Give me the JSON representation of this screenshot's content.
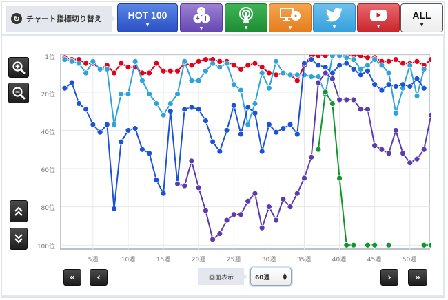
{
  "topbar": {
    "switch_label": "チャート指標切り替え",
    "tabs": [
      {
        "id": "hot100",
        "label": "HOT 100",
        "color": "#2f55cc"
      },
      {
        "id": "sales",
        "label": "",
        "icon": "sales-download-icon",
        "color": "#6e52b8"
      },
      {
        "id": "radio",
        "label": "",
        "icon": "radio-airplay-icon",
        "color": "#239a3b"
      },
      {
        "id": "pc",
        "label": "",
        "icon": "pc-lookup-icon",
        "color": "#ec8a2c"
      },
      {
        "id": "twitter",
        "label": "",
        "icon": "twitter-icon",
        "color": "#3fa7e0"
      },
      {
        "id": "youtube",
        "label": "",
        "icon": "youtube-icon",
        "color": "#d0323a"
      },
      {
        "id": "all",
        "label": "ALL",
        "color": "#ffffff"
      }
    ]
  },
  "controls": {
    "zoom_in": "zoom-in",
    "zoom_out": "zoom-out",
    "scroll_up": "scroll-up",
    "scroll_down": "scroll-down"
  },
  "footer": {
    "first": "«",
    "prev": "‹",
    "display_label": "画面表示",
    "display_value": "60週",
    "next": "›",
    "last": "»"
  },
  "chart_data": {
    "type": "line",
    "title": "",
    "xlabel": "",
    "ylabel": "",
    "y_inverted": true,
    "ylim": [
      1,
      100
    ],
    "y_ticks": [
      {
        "value": 1,
        "label": "1位"
      },
      {
        "value": 20,
        "label": "20位"
      },
      {
        "value": 40,
        "label": "40位"
      },
      {
        "value": 60,
        "label": "60位"
      },
      {
        "value": 80,
        "label": "80位"
      },
      {
        "value": 100,
        "label": "100位"
      }
    ],
    "x_ticks": [
      {
        "value": 5,
        "label": "5週"
      },
      {
        "value": 10,
        "label": "10週"
      },
      {
        "value": 15,
        "label": "15週"
      },
      {
        "value": 20,
        "label": "20週"
      },
      {
        "value": 25,
        "label": "25週"
      },
      {
        "value": 30,
        "label": "30週"
      },
      {
        "value": 35,
        "label": "35週"
      },
      {
        "value": 40,
        "label": "40週"
      },
      {
        "value": 45,
        "label": "45週"
      },
      {
        "value": 50,
        "label": "50週"
      }
    ],
    "grid": true,
    "legend": "none",
    "series": [
      {
        "name": "Red",
        "color": "#e3001b",
        "x_start": 1,
        "values": [
          2,
          3,
          3,
          5,
          5,
          8,
          6,
          10,
          5,
          7,
          7,
          10,
          10,
          5,
          9,
          9,
          9,
          5,
          6,
          4,
          3,
          3,
          4,
          4,
          6,
          8,
          6,
          5,
          7,
          10,
          11,
          10,
          11,
          14,
          6,
          1,
          1,
          1,
          1,
          1,
          1,
          1,
          1,
          2,
          2,
          4,
          4,
          3,
          5,
          5,
          4,
          6,
          3
        ]
      },
      {
        "name": "Light Blue",
        "color": "#2ea3db",
        "x_start": 1,
        "values": [
          3,
          4,
          5,
          10,
          4,
          8,
          8,
          37,
          21,
          21,
          4,
          14,
          21,
          26,
          32,
          26,
          21,
          4,
          14,
          14,
          9,
          5,
          7,
          5,
          16,
          19,
          37,
          26,
          10,
          18,
          4,
          10,
          11,
          11,
          11,
          12,
          12,
          21,
          1,
          1,
          2,
          3,
          8,
          6,
          3,
          6,
          10,
          31,
          18,
          6,
          22,
          8
        ]
      },
      {
        "name": "Dark Blue",
        "color": "#1a53d6",
        "x_start": 1,
        "values": [
          18,
          15,
          26,
          29,
          37,
          41,
          37,
          81,
          46,
          40,
          39,
          50,
          52,
          66,
          73,
          30,
          68,
          29,
          28,
          29,
          35,
          46,
          51,
          40,
          27,
          42,
          28,
          31,
          51,
          37,
          41,
          39,
          37,
          42,
          5,
          3,
          6,
          7,
          10,
          6,
          5,
          8,
          11,
          9,
          16,
          19,
          16,
          17,
          16,
          17,
          13,
          18
        ]
      },
      {
        "name": "Purple",
        "color": "#5a3cad",
        "x_start": 17,
        "values": [
          68,
          69,
          56,
          70,
          82,
          97,
          94,
          87,
          84,
          84,
          77,
          73,
          91,
          80,
          87,
          76,
          80,
          73,
          65,
          54,
          15,
          10,
          13,
          24,
          24,
          24,
          29,
          29,
          48,
          50,
          52,
          40,
          52,
          57,
          55,
          50,
          32
        ]
      },
      {
        "name": "Green",
        "color": "#12962b",
        "x_start": 37,
        "values": [
          50,
          20,
          26,
          65,
          100,
          100,
          null,
          100,
          100,
          null,
          100,
          null,
          null,
          null,
          null,
          100,
          100
        ]
      }
    ]
  }
}
